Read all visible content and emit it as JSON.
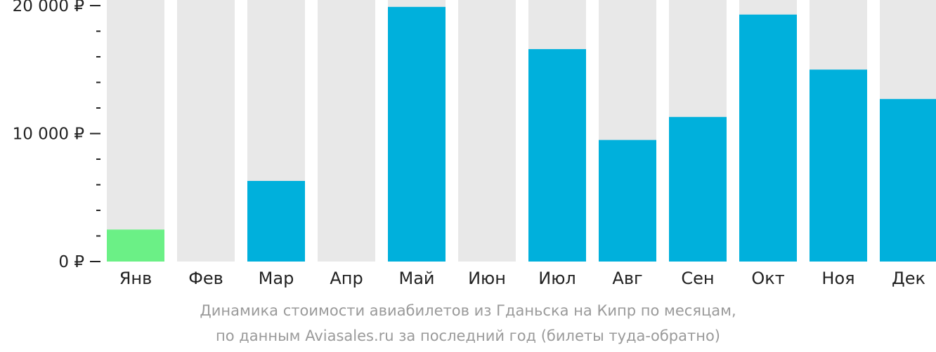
{
  "chart_data": {
    "type": "bar",
    "categories": [
      "Янв",
      "Фев",
      "Мар",
      "Апр",
      "Май",
      "Июн",
      "Июл",
      "Авг",
      "Сен",
      "Окт",
      "Ноя",
      "Дек"
    ],
    "values": [
      2500,
      null,
      6300,
      null,
      19900,
      null,
      16600,
      9500,
      11300,
      19300,
      15000,
      12700
    ],
    "ylim": [
      0,
      20000
    ],
    "y_tick_labels": [
      "0 ₽",
      "10 000 ₽",
      "20 000 ₽"
    ],
    "y_tick_values": [
      0,
      10000,
      20000
    ],
    "minor_tick_step": 2000,
    "highlight_index": 0,
    "colors": {
      "bar": "#00b0dc",
      "highlight": "#6bf086",
      "background_column": "#e8e8e8",
      "axis_text": "#222222",
      "caption": "#9a9a9a"
    },
    "grid": false,
    "legend": "none"
  },
  "caption": {
    "line1": "Динамика стоимости авиабилетов из Гданьска на Кипр по месяцам,",
    "line2": "по данным Aviasales.ru за последний год (билеты туда-обратно)"
  }
}
